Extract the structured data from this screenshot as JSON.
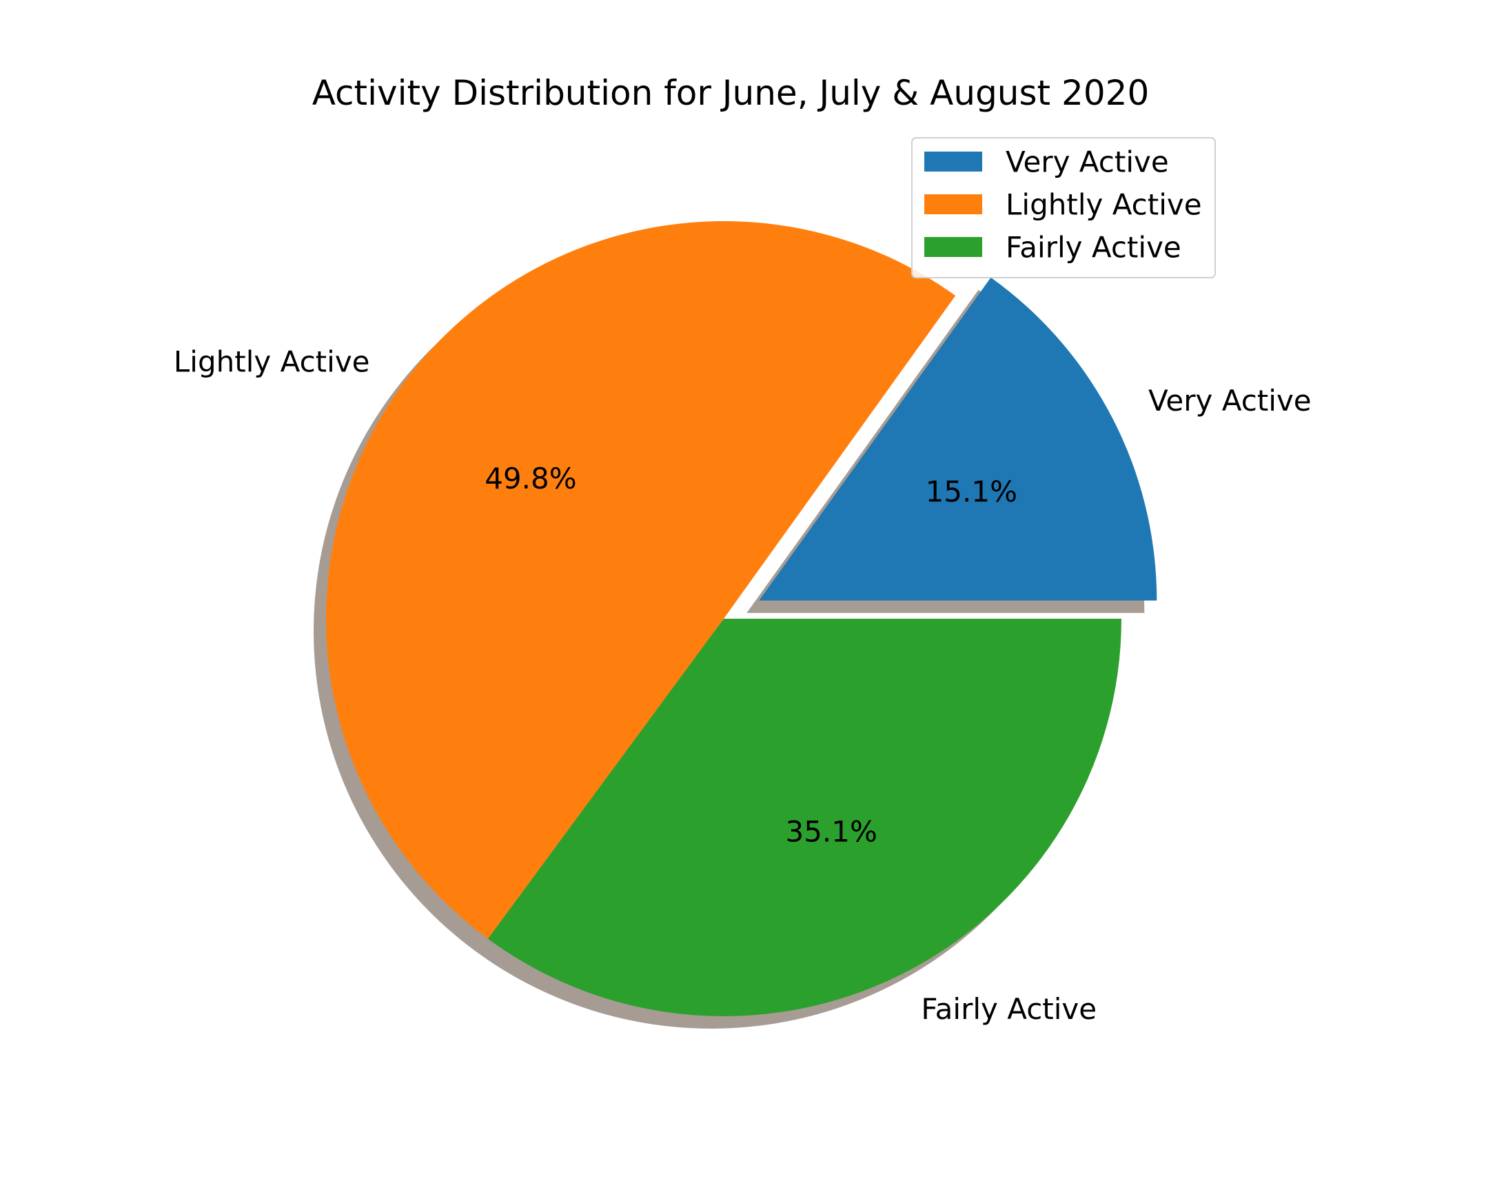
{
  "chart_data": {
    "type": "pie",
    "title": "Activity Distribution for June, July & August 2020",
    "slices": [
      {
        "name": "Very Active",
        "value": 15.1,
        "label": "15.1%",
        "color": "#1f77b4",
        "exploded": true
      },
      {
        "name": "Lightly Active",
        "value": 49.8,
        "label": "49.8%",
        "color": "#ff7f0e",
        "exploded": false
      },
      {
        "name": "Fairly Active",
        "value": 35.1,
        "label": "35.1%",
        "color": "#2ca02c",
        "exploded": false
      }
    ],
    "start_angle": 0,
    "direction": "counterclockwise",
    "shadow": true,
    "legend": {
      "position": "upper-right",
      "entries": [
        "Very Active",
        "Lightly Active",
        "Fairly Active"
      ]
    }
  }
}
